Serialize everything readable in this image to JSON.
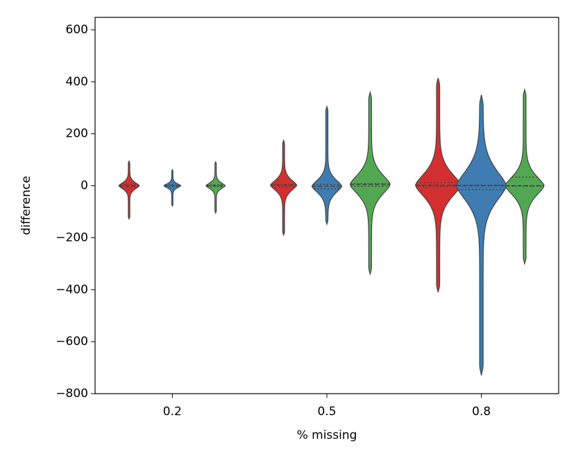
{
  "chart_data": {
    "type": "violin",
    "x_label": "% missing",
    "y_label": "difference",
    "categories": [
      "0.2",
      "0.5",
      "0.8"
    ],
    "ylim": [
      -800,
      648
    ],
    "yticks": [
      {
        "value": -800,
        "label": "−800"
      },
      {
        "value": -600,
        "label": "−600"
      },
      {
        "value": -400,
        "label": "−400"
      },
      {
        "value": -200,
        "label": "−200"
      },
      0,
      200,
      400,
      600
    ],
    "series": [
      {
        "color": "#d42f30",
        "min": [
          -128,
          -190,
          -410
        ],
        "q1": [
          -5,
          -5,
          -2
        ],
        "median": [
          0,
          2,
          2
        ],
        "q3": [
          5,
          5,
          12
        ],
        "max": [
          95,
          175,
          415
        ]
      },
      {
        "color": "#3e7cb1",
        "min": [
          -78,
          -148,
          -730
        ],
        "q1": [
          -4,
          -12,
          -15
        ],
        "median": [
          0,
          -2,
          0
        ],
        "q3": [
          3,
          5,
          2
        ],
        "max": [
          62,
          305,
          350
        ]
      },
      {
        "color": "#52a852",
        "min": [
          -105,
          -340,
          -300
        ],
        "q1": [
          -3,
          -2,
          -2
        ],
        "median": [
          0,
          5,
          0
        ],
        "q3": [
          4,
          8,
          33
        ],
        "max": [
          92,
          360,
          370
        ]
      }
    ]
  }
}
